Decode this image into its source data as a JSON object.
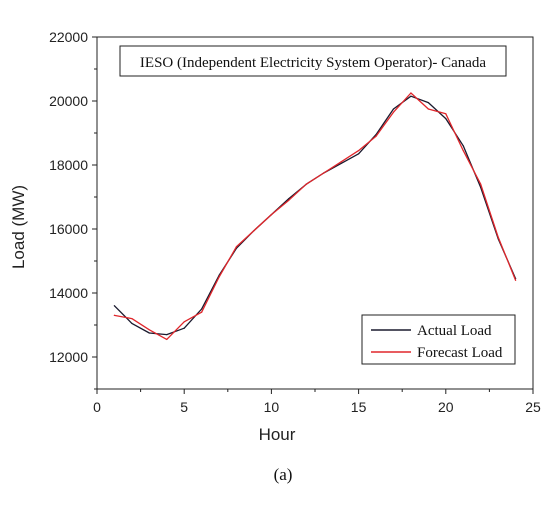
{
  "chart_data": {
    "type": "line",
    "title": "IESO (Independent Electricity System Operator)- Canada",
    "xlabel": "Hour",
    "ylabel": "Load (MW)",
    "caption": "(a)",
    "xlim": [
      0,
      25
    ],
    "ylim": [
      11000,
      22000
    ],
    "xticks": [
      0,
      5,
      10,
      15,
      20,
      25
    ],
    "yticks": [
      12000,
      14000,
      16000,
      18000,
      20000,
      22000
    ],
    "legend": "bottom-right",
    "x": [
      1,
      2,
      3,
      4,
      5,
      6,
      7,
      8,
      9,
      10,
      11,
      12,
      13,
      14,
      15,
      16,
      17,
      18,
      19,
      20,
      21,
      22,
      23,
      24
    ],
    "series": [
      {
        "name": "Actual Load",
        "color": "#1a1a2e",
        "values": [
          13600,
          13050,
          12750,
          12700,
          12900,
          13500,
          14550,
          15400,
          15950,
          16450,
          16950,
          17400,
          17750,
          18050,
          18350,
          18950,
          19750,
          20150,
          19950,
          19450,
          18600,
          17300,
          15700,
          14450
        ]
      },
      {
        "name": "Forecast Load",
        "color": "#e0262b",
        "values": [
          13300,
          13200,
          12850,
          12550,
          13100,
          13400,
          14500,
          15450,
          15950,
          16450,
          16900,
          17400,
          17750,
          18100,
          18450,
          18900,
          19650,
          20250,
          19750,
          19600,
          18450,
          17400,
          15750,
          14400
        ]
      }
    ]
  }
}
